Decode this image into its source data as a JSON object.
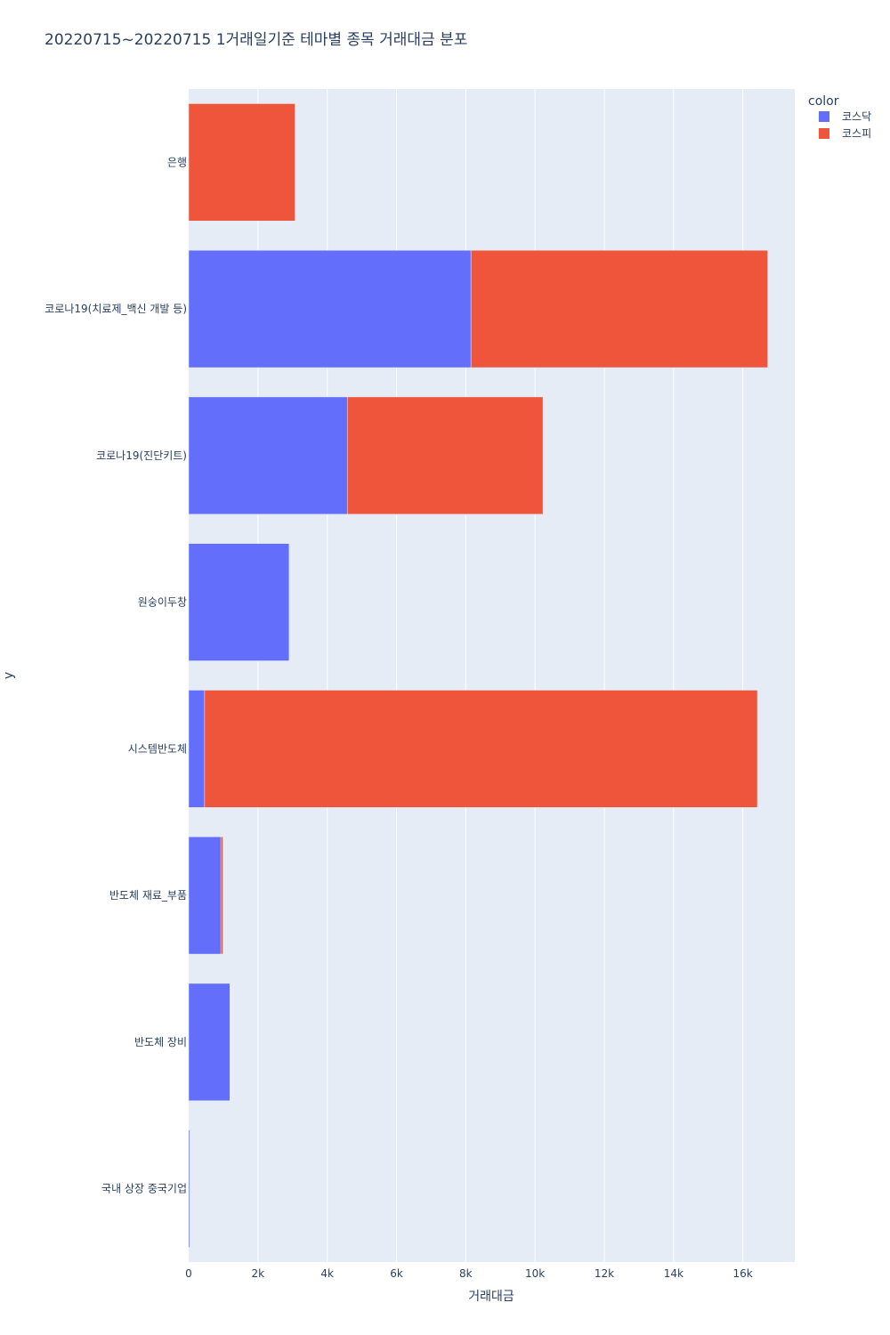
{
  "chart_data": {
    "type": "bar",
    "orientation": "horizontal",
    "barmode": "stack",
    "title": "20220715~20220715 1거래일기준 테마별 종목 거래대금 분포",
    "xlabel": "거래대금",
    "ylabel": "y",
    "xlim": [
      0,
      17500
    ],
    "x_ticks": [
      0,
      2000,
      4000,
      6000,
      8000,
      10000,
      12000,
      14000,
      16000
    ],
    "x_tick_labels": [
      "0",
      "2k",
      "4k",
      "6k",
      "8k",
      "10k",
      "12k",
      "14k",
      "16k"
    ],
    "grid": true,
    "legend": {
      "title": "color",
      "position": "top-right"
    },
    "categories": [
      "국내 상장 중국기업",
      "반도체 장비",
      "반도체 재료_부품",
      "시스템반도체",
      "원숭이두창",
      "코로나19(진단키트)",
      "코로나19(치료제_백신 개발 등)",
      "은행"
    ],
    "series": [
      {
        "name": "코스닥",
        "color": "#636efa",
        "values": [
          30,
          1190,
          930,
          460,
          2900,
          4580,
          8150,
          0
        ]
      },
      {
        "name": "코스피",
        "color": "#ef553b",
        "values": [
          0,
          0,
          60,
          15960,
          0,
          5650,
          8570,
          3070
        ]
      }
    ]
  }
}
